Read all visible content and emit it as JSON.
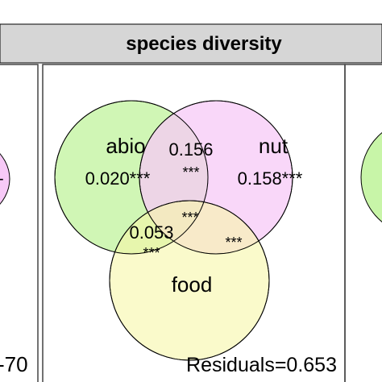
{
  "strip": {
    "title": "species diversity"
  },
  "panel": {
    "sets": [
      {
        "key": "abio",
        "label": "abio",
        "color": "#c8f5a8"
      },
      {
        "key": "nut",
        "label": "nut",
        "color": "#f7c9f7"
      },
      {
        "key": "food",
        "label": "food",
        "color": "#f6f6a8"
      }
    ],
    "values": {
      "abio_only": "0.020***",
      "nut_only": "0.158***",
      "abio_nut": "0.156",
      "abio_nut_sig": "***",
      "abio_food": "0.053",
      "abio_food_sig": "***",
      "nut_food_sig": "***",
      "all_three_sig": "***"
    },
    "residuals": "Residuals=0.653"
  },
  "left_neighbor": {
    "residuals_fragment": "-70",
    "value_fragment": "-"
  },
  "right_neighbor": {
    "value_fragment": ""
  }
}
